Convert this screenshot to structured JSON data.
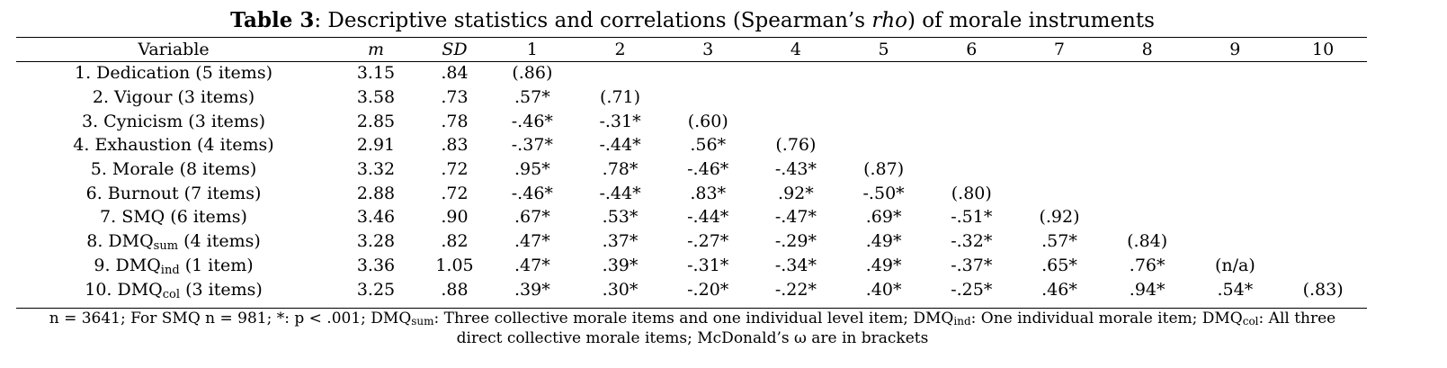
{
  "title": {
    "label": "Table 3",
    "text_before_italic": ": Descriptive statistics and correlations (Spearman’s ",
    "italic": "rho",
    "text_after_italic": ") of morale instruments"
  },
  "headers": [
    "Variable",
    "m",
    "SD",
    "1",
    "2",
    "3",
    "4",
    "5",
    "6",
    "7",
    "8",
    "9",
    "10"
  ],
  "rows": [
    {
      "name": "1. Dedication",
      "sub": "",
      "items": " (5 items)",
      "m": "3.15",
      "sd": ".84",
      "cells": [
        "(.86)",
        "",
        "",
        "",
        "",
        "",
        "",
        "",
        "",
        ""
      ]
    },
    {
      "name": "2. Vigour",
      "sub": "",
      "items": " (3 items)",
      "m": "3.58",
      "sd": ".73",
      "cells": [
        ".57*",
        "(.71)",
        "",
        "",
        "",
        "",
        "",
        "",
        "",
        ""
      ]
    },
    {
      "name": "3. Cynicism",
      "sub": "",
      "items": " (3 items)",
      "m": "2.85",
      "sd": ".78",
      "cells": [
        "-.46*",
        "-.31*",
        "(.60)",
        "",
        "",
        "",
        "",
        "",
        "",
        ""
      ]
    },
    {
      "name": "4. Exhaustion",
      "sub": "",
      "items": " (4 items)",
      "m": "2.91",
      "sd": ".83",
      "cells": [
        "-.37*",
        "-.44*",
        ".56*",
        "(.76)",
        "",
        "",
        "",
        "",
        "",
        ""
      ]
    },
    {
      "name": "5. Morale",
      "sub": "",
      "items": " (8 items)",
      "m": "3.32",
      "sd": ".72",
      "cells": [
        ".95*",
        ".78*",
        "-.46*",
        "-.43*",
        "(.87)",
        "",
        "",
        "",
        "",
        ""
      ]
    },
    {
      "name": "6. Burnout",
      "sub": "",
      "items": " (7 items)",
      "m": "2.88",
      "sd": ".72",
      "cells": [
        "-.46*",
        "-.44*",
        ".83*",
        ".92*",
        "-.50*",
        "(.80)",
        "",
        "",
        "",
        ""
      ]
    },
    {
      "name": "7. SMQ",
      "sub": "",
      "items": " (6 items)",
      "m": "3.46",
      "sd": ".90",
      "cells": [
        ".67*",
        ".53*",
        "-.44*",
        "-.47*",
        ".69*",
        "-.51*",
        "(.92)",
        "",
        "",
        ""
      ]
    },
    {
      "name": "8. DMQ",
      "sub": "sum",
      "items": " (4 items)",
      "m": "3.28",
      "sd": ".82",
      "cells": [
        ".47*",
        ".37*",
        "-.27*",
        "-.29*",
        ".49*",
        "-.32*",
        ".57*",
        "(.84)",
        "",
        ""
      ]
    },
    {
      "name": "9. DMQ",
      "sub": "ind",
      "items": " (1 item)",
      "m": "3.36",
      "sd": "1.05",
      "cells": [
        ".47*",
        ".39*",
        "-.31*",
        "-.34*",
        ".49*",
        "-.37*",
        ".65*",
        ".76*",
        "(n/a)",
        ""
      ]
    },
    {
      "name": "10. DMQ",
      "sub": "col",
      "items": " (3 items)",
      "m": "3.25",
      "sd": ".88",
      "cells": [
        ".39*",
        ".30*",
        "-.20*",
        "-.22*",
        ".40*",
        "-.25*",
        ".46*",
        ".94*",
        ".54*",
        "(.83)"
      ]
    }
  ],
  "note": {
    "p1": "n = 3641; For SMQ n = 981; *: p < .001; DMQ",
    "sub1": "sum",
    "p2": ": Three collective morale items and one individual level item; DMQ",
    "sub2": "ind",
    "p3": ": One individual morale item; DMQ",
    "sub3": "col",
    "p4": ": All three",
    "line2": "direct collective morale items; McDonald’s ω are in brackets"
  }
}
